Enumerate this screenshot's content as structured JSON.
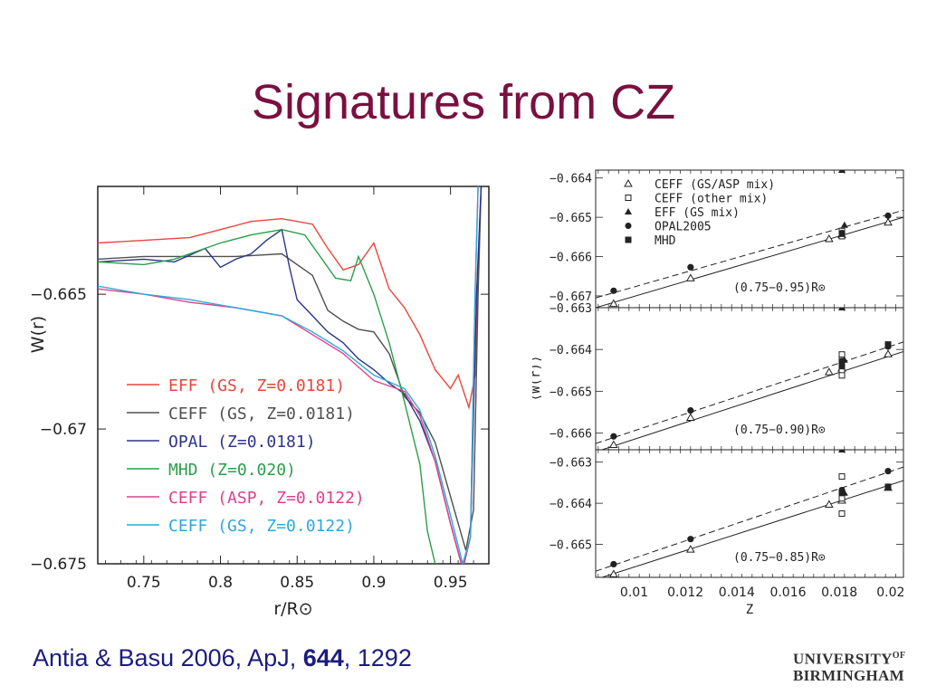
{
  "slide": {
    "title": "Signatures from CZ",
    "citation": {
      "authors": "Antia & Basu 2006, ApJ, ",
      "volume": "644",
      "pages": ", 1292"
    },
    "logo": {
      "line1": "UNIVERSITY",
      "of": "OF",
      "line2": "BIRMINGHAM"
    }
  },
  "chart_data": [
    {
      "type": "line",
      "xlabel": "r/R⊙",
      "ylabel": "W(r)",
      "xlim": [
        0.72,
        0.975
      ],
      "ylim": [
        -0.675,
        -0.661
      ],
      "x_ticks": [
        0.75,
        0.8,
        0.85,
        0.9,
        0.95
      ],
      "x_tick_labels": [
        "0.75",
        "0.8",
        "0.85",
        "0.9",
        "0.95"
      ],
      "y_ticks": [
        -0.665,
        -0.67,
        -0.675
      ],
      "y_tick_labels": [
        "−0.665",
        "−0.67",
        "−0.675"
      ],
      "legend_position": "bottom-left",
      "series": [
        {
          "name": "EFF (GS, Z=0.0181)",
          "color": "#e8463c",
          "points": [
            [
              0.72,
              -0.6631
            ],
            [
              0.75,
              -0.663
            ],
            [
              0.78,
              -0.6629
            ],
            [
              0.8,
              -0.6626
            ],
            [
              0.82,
              -0.6623
            ],
            [
              0.84,
              -0.6622
            ],
            [
              0.86,
              -0.6624
            ],
            [
              0.87,
              -0.6633
            ],
            [
              0.88,
              -0.6641
            ],
            [
              0.89,
              -0.6639
            ],
            [
              0.9,
              -0.6631
            ],
            [
              0.91,
              -0.6648
            ],
            [
              0.92,
              -0.6655
            ],
            [
              0.93,
              -0.6665
            ],
            [
              0.94,
              -0.6678
            ],
            [
              0.95,
              -0.6685
            ],
            [
              0.955,
              -0.668
            ],
            [
              0.962,
              -0.6692
            ],
            [
              0.966,
              -0.668
            ],
            [
              0.968,
              -0.664
            ],
            [
              0.97,
              -0.661
            ]
          ]
        },
        {
          "name": "CEFF (GS, Z=0.0181)",
          "color": "#505050",
          "points": [
            [
              0.72,
              -0.6637
            ],
            [
              0.75,
              -0.6636
            ],
            [
              0.78,
              -0.6636
            ],
            [
              0.81,
              -0.6636
            ],
            [
              0.84,
              -0.6635
            ],
            [
              0.86,
              -0.6643
            ],
            [
              0.87,
              -0.6656
            ],
            [
              0.88,
              -0.666
            ],
            [
              0.89,
              -0.6663
            ],
            [
              0.9,
              -0.6664
            ],
            [
              0.91,
              -0.6672
            ],
            [
              0.92,
              -0.6688
            ],
            [
              0.93,
              -0.6694
            ],
            [
              0.94,
              -0.6705
            ],
            [
              0.95,
              -0.6725
            ],
            [
              0.96,
              -0.6745
            ],
            [
              0.965,
              -0.673
            ],
            [
              0.968,
              -0.665
            ],
            [
              0.97,
              -0.661
            ]
          ]
        },
        {
          "name": "OPAL (Z=0.0181)",
          "color": "#2c3588",
          "points": [
            [
              0.72,
              -0.6638
            ],
            [
              0.75,
              -0.6637
            ],
            [
              0.77,
              -0.6638
            ],
            [
              0.79,
              -0.6633
            ],
            [
              0.8,
              -0.664
            ],
            [
              0.81,
              -0.6637
            ],
            [
              0.82,
              -0.6635
            ],
            [
              0.83,
              -0.663
            ],
            [
              0.84,
              -0.6626
            ],
            [
              0.845,
              -0.664
            ],
            [
              0.85,
              -0.6652
            ],
            [
              0.86,
              -0.6658
            ],
            [
              0.87,
              -0.6664
            ],
            [
              0.88,
              -0.6668
            ],
            [
              0.89,
              -0.6674
            ],
            [
              0.9,
              -0.6678
            ],
            [
              0.91,
              -0.6683
            ],
            [
              0.92,
              -0.6687
            ],
            [
              0.93,
              -0.6697
            ],
            [
              0.94,
              -0.6712
            ],
            [
              0.95,
              -0.6735
            ],
            [
              0.958,
              -0.6752
            ],
            [
              0.963,
              -0.674
            ],
            [
              0.967,
              -0.665
            ],
            [
              0.97,
              -0.661
            ]
          ]
        },
        {
          "name": "MHD (Z=0.020)",
          "color": "#2a9e4a",
          "points": [
            [
              0.72,
              -0.6638
            ],
            [
              0.75,
              -0.6639
            ],
            [
              0.77,
              -0.6637
            ],
            [
              0.8,
              -0.6631
            ],
            [
              0.82,
              -0.6628
            ],
            [
              0.84,
              -0.6626
            ],
            [
              0.855,
              -0.6628
            ],
            [
              0.865,
              -0.6636
            ],
            [
              0.875,
              -0.6644
            ],
            [
              0.885,
              -0.6645
            ],
            [
              0.89,
              -0.6636
            ],
            [
              0.9,
              -0.665
            ],
            [
              0.91,
              -0.6668
            ],
            [
              0.92,
              -0.669
            ],
            [
              0.93,
              -0.6713
            ],
            [
              0.935,
              -0.6738
            ],
            [
              0.94,
              -0.675
            ],
            [
              0.945,
              -0.677
            ]
          ]
        },
        {
          "name": "CEFF (ASP, Z=0.0122)",
          "color": "#e0408c",
          "points": [
            [
              0.72,
              -0.6648
            ],
            [
              0.75,
              -0.665
            ],
            [
              0.78,
              -0.6653
            ],
            [
              0.81,
              -0.6655
            ],
            [
              0.84,
              -0.6658
            ],
            [
              0.86,
              -0.6665
            ],
            [
              0.88,
              -0.6672
            ],
            [
              0.9,
              -0.6682
            ],
            [
              0.92,
              -0.6686
            ],
            [
              0.93,
              -0.6695
            ],
            [
              0.94,
              -0.6712
            ],
            [
              0.95,
              -0.6735
            ],
            [
              0.958,
              -0.6752
            ],
            [
              0.963,
              -0.674
            ],
            [
              0.966,
              -0.665
            ],
            [
              0.968,
              -0.661
            ]
          ]
        },
        {
          "name": "CEFF (GS, Z=0.0122)",
          "color": "#2ea8dc",
          "points": [
            [
              0.72,
              -0.6647
            ],
            [
              0.75,
              -0.665
            ],
            [
              0.78,
              -0.6652
            ],
            [
              0.81,
              -0.6655
            ],
            [
              0.84,
              -0.6658
            ],
            [
              0.86,
              -0.6664
            ],
            [
              0.88,
              -0.6671
            ],
            [
              0.9,
              -0.668
            ],
            [
              0.92,
              -0.6685
            ],
            [
              0.93,
              -0.6693
            ],
            [
              0.94,
              -0.671
            ],
            [
              0.95,
              -0.6732
            ],
            [
              0.958,
              -0.675
            ],
            [
              0.963,
              -0.674
            ],
            [
              0.966,
              -0.665
            ],
            [
              0.968,
              -0.661
            ]
          ]
        }
      ]
    },
    {
      "type": "scatter",
      "xlabel": "Z",
      "ylabel": "⟨W(r)⟩",
      "xlim": [
        0.0085,
        0.0205
      ],
      "x_ticks": [
        0.01,
        0.012,
        0.014,
        0.016,
        0.018,
        0.02
      ],
      "x_tick_labels": [
        "0.01",
        "0.012",
        "0.014",
        "0.016",
        "0.018",
        "0.02"
      ],
      "legend_position": "top-left",
      "legend": [
        {
          "name": "CEFF (GS/ASP mix)",
          "marker": "open-triangle"
        },
        {
          "name": "CEFF (other mix)",
          "marker": "open-square"
        },
        {
          "name": "EFF (GS mix)",
          "marker": "filled-triangle"
        },
        {
          "name": "OPAL2005",
          "marker": "filled-circle"
        },
        {
          "name": "MHD",
          "marker": "filled-square"
        }
      ],
      "panels": [
        {
          "label": "(0.75−0.95)R⊙",
          "ylim": [
            -0.6673,
            -0.6638
          ],
          "y_ticks": [
            -0.664,
            -0.665,
            -0.666,
            -0.667
          ],
          "y_tick_labels": [
            "−0.664",
            "−0.665",
            "−0.666",
            "−0.667"
          ],
          "open_triangle": [
            [
              0.0092,
              -0.6672
            ],
            [
              0.0122,
              -0.66655
            ],
            [
              0.0176,
              -0.66555
            ],
            [
              0.0181,
              -0.66545
            ],
            [
              0.0199,
              -0.66513
            ]
          ],
          "open_square": [
            [
              0.0181,
              -0.66535
            ],
            [
              0.0181,
              -0.66548
            ]
          ],
          "filled_triangle": [
            [
              0.0181,
              -0.6638
            ],
            [
              0.0182,
              -0.6652
            ]
          ],
          "filled_circle": [
            [
              0.0092,
              -0.66687
            ],
            [
              0.0122,
              -0.66627
            ],
            [
              0.0181,
              -0.6654
            ],
            [
              0.0199,
              -0.66496
            ]
          ],
          "filled_square": [
            [
              0.0181,
              -0.66542
            ]
          ],
          "fit_solid": [
            [
              0.0085,
              -0.6673
            ],
            [
              0.0205,
              -0.665
            ]
          ],
          "fit_dashed": [
            [
              0.0085,
              -0.66705
            ],
            [
              0.0205,
              -0.66482
            ]
          ]
        },
        {
          "label": "(0.75−0.90)R⊙",
          "ylim": [
            -0.6664,
            -0.663
          ],
          "y_ticks": [
            -0.663,
            -0.664,
            -0.665,
            -0.666
          ],
          "y_tick_labels": [
            "−0.663",
            "−0.664",
            "−0.665",
            "−0.666"
          ],
          "open_triangle": [
            [
              0.0092,
              -0.66628
            ],
            [
              0.0122,
              -0.66563
            ],
            [
              0.0176,
              -0.66454
            ],
            [
              0.0181,
              -0.66445
            ],
            [
              0.0199,
              -0.66411
            ]
          ],
          "open_square": [
            [
              0.0181,
              -0.66412
            ],
            [
              0.0181,
              -0.66425
            ],
            [
              0.0181,
              -0.66438
            ],
            [
              0.0181,
              -0.66452
            ],
            [
              0.0181,
              -0.66462
            ]
          ],
          "filled_triangle": [
            [
              0.0181,
              -0.663
            ],
            [
              0.0182,
              -0.66425
            ]
          ],
          "filled_circle": [
            [
              0.0092,
              -0.66608
            ],
            [
              0.0122,
              -0.66546
            ],
            [
              0.0181,
              -0.66428
            ],
            [
              0.0199,
              -0.66393
            ]
          ],
          "filled_square": [
            [
              0.0181,
              -0.6644
            ],
            [
              0.0199,
              -0.66388
            ]
          ],
          "fit_solid": [
            [
              0.0085,
              -0.66645
            ],
            [
              0.0205,
              -0.66405
            ]
          ],
          "fit_dashed": [
            [
              0.0085,
              -0.66625
            ],
            [
              0.0205,
              -0.66382
            ]
          ]
        },
        {
          "label": "(0.75−0.85)R⊙",
          "ylim": [
            -0.6658,
            -0.6627
          ],
          "y_ticks": [
            -0.663,
            -0.664,
            -0.665
          ],
          "y_tick_labels": [
            "−0.663",
            "−0.664",
            "−0.665"
          ],
          "open_triangle": [
            [
              0.0092,
              -0.66572
            ],
            [
              0.0122,
              -0.66512
            ],
            [
              0.0176,
              -0.66403
            ],
            [
              0.0181,
              -0.66393
            ],
            [
              0.0199,
              -0.66362
            ]
          ],
          "open_square": [
            [
              0.0181,
              -0.66335
            ],
            [
              0.0181,
              -0.66388
            ],
            [
              0.0181,
              -0.66425
            ]
          ],
          "filled_triangle": [
            [
              0.0181,
              -0.6627
            ],
            [
              0.0182,
              -0.66375
            ]
          ],
          "filled_circle": [
            [
              0.0092,
              -0.66548
            ],
            [
              0.0122,
              -0.66487
            ],
            [
              0.0181,
              -0.66368
            ],
            [
              0.0199,
              -0.66322
            ]
          ],
          "filled_square": [
            [
              0.0181,
              -0.66375
            ],
            [
              0.0199,
              -0.6636
            ]
          ],
          "fit_solid": [
            [
              0.0085,
              -0.66585
            ],
            [
              0.0205,
              -0.66345
            ]
          ],
          "fit_dashed": [
            [
              0.0085,
              -0.66565
            ],
            [
              0.0205,
              -0.66312
            ]
          ]
        }
      ]
    }
  ]
}
